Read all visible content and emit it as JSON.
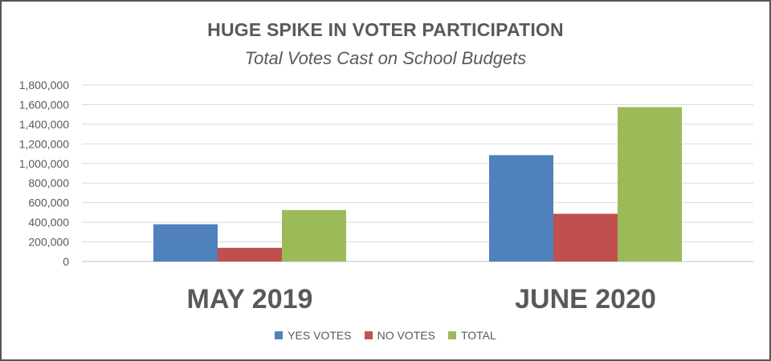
{
  "chart_data": {
    "type": "bar",
    "title": "HUGE SPIKE IN VOTER PARTICIPATION",
    "subtitle": "Total Votes Cast on School Budgets",
    "categories": [
      "MAY 2019",
      "JUNE 2020"
    ],
    "series": [
      {
        "name": "YES VOTES",
        "color": "#4F81BD",
        "values": [
          380000,
          1085000
        ]
      },
      {
        "name": "NO VOTES",
        "color": "#C0504D",
        "values": [
          140000,
          487000
        ]
      },
      {
        "name": "TOTAL",
        "color": "#9BBB59",
        "values": [
          525000,
          1575000
        ]
      }
    ],
    "ylim": [
      0,
      1800000
    ],
    "yticks": [
      "0",
      "200,000",
      "400,000",
      "600,000",
      "800,000",
      "1,000,000",
      "1,200,000",
      "1,400,000",
      "1,600,000",
      "1,800,000"
    ],
    "xlabel": "",
    "ylabel": "",
    "grid": true,
    "legend_position": "bottom"
  }
}
